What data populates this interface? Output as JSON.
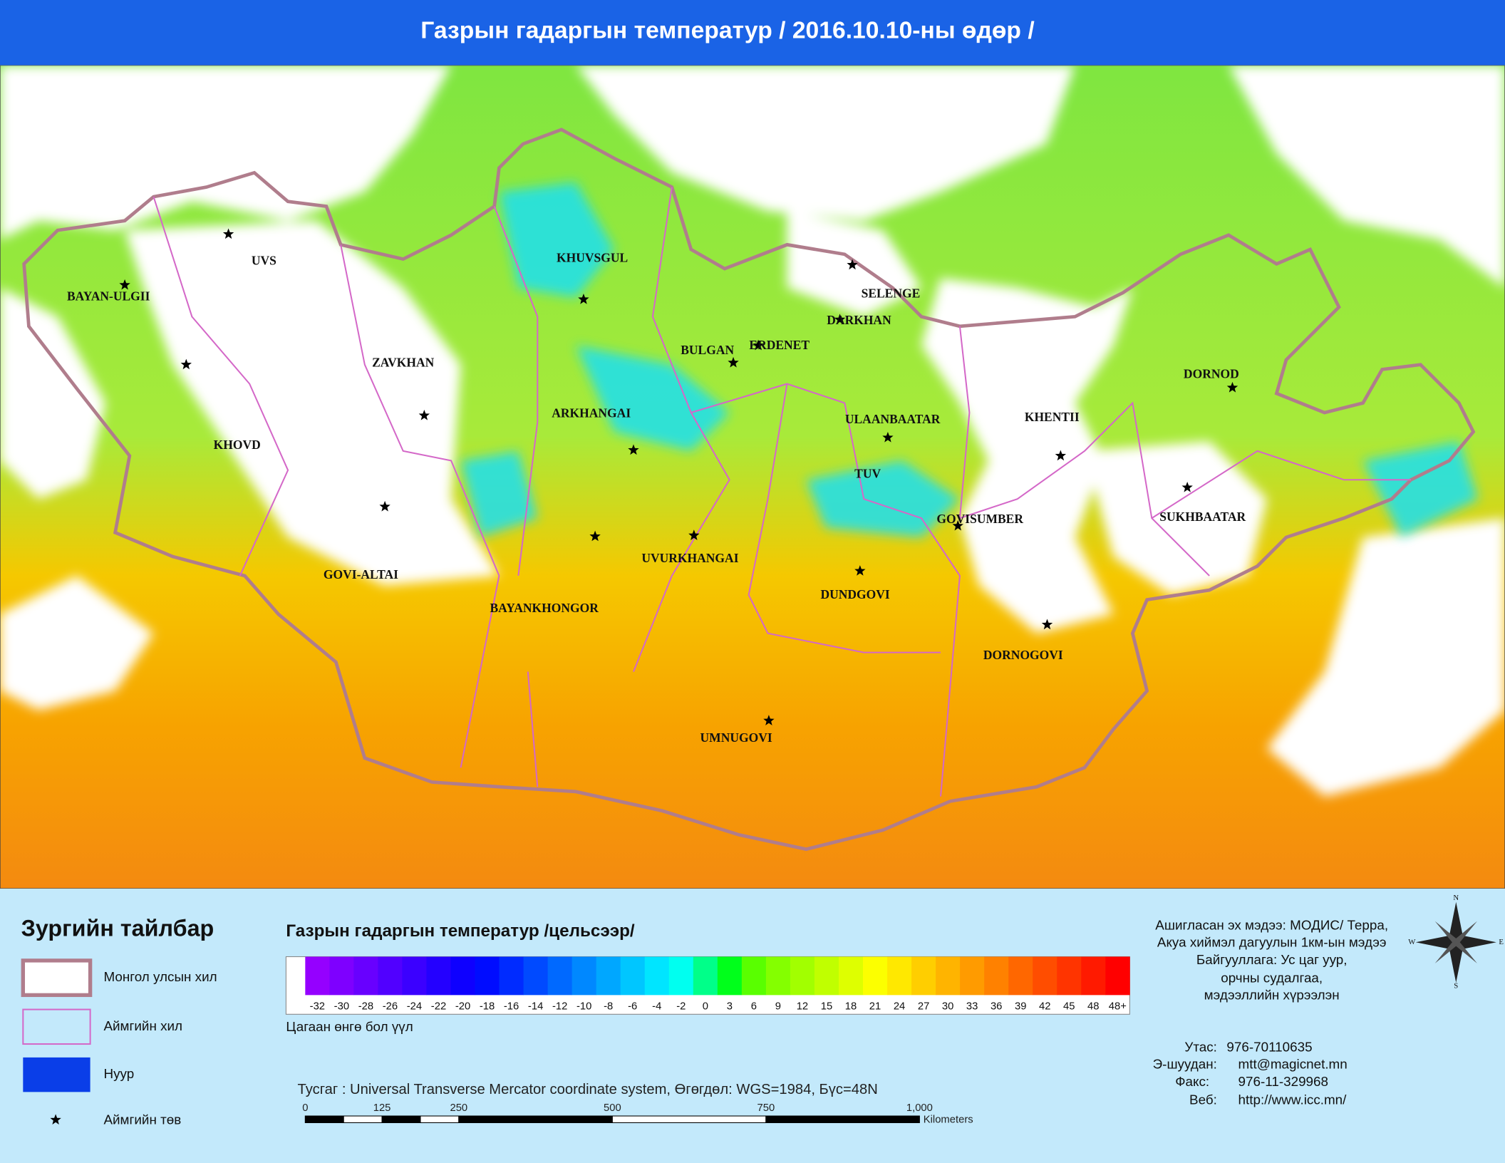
{
  "header": {
    "title": "Газрын гадаргын температур / 2016.10.10-ны өдөр /"
  },
  "map": {
    "labels": [
      "UVS",
      "BAYAN-ULGII",
      "KHUVSGUL",
      "SELENGE",
      "DARKHAN",
      "BULGAN",
      "ERDENET",
      "ZAVKHAN",
      "DORNOD",
      "ARKHANGAI",
      "ULAANBAATAR",
      "KHENTII",
      "KHOVD",
      "TUV",
      "GOVISUMBER",
      "SUKHBAATAR",
      "UVURKHANGAI",
      "GOVI-ALTAI",
      "DUNDGOVI",
      "BAYANKHONGOR",
      "DORNOGOVI",
      "UMNUGOVI"
    ]
  },
  "legend": {
    "title": "Зургийн тайлбар",
    "items": [
      "Монгол улсын хил",
      "Аймгийн хил",
      "Нуур",
      "Аймгийн төв"
    ]
  },
  "color_scale": {
    "title": "Газрын гадаргын температур /цельсээр/",
    "labels": [
      "-32",
      "-30",
      "-28",
      "-26",
      "-24",
      "-22",
      "-20",
      "-18",
      "-16",
      "-14",
      "-12",
      "-10",
      "-8",
      "-6",
      "-4",
      "-2",
      "0",
      "3",
      "6",
      "9",
      "12",
      "15",
      "18",
      "21",
      "24",
      "27",
      "30",
      "33",
      "36",
      "39",
      "42",
      "45",
      "48",
      "48+"
    ],
    "note": "Цагаан өнгө бол үүл"
  },
  "scale_bar": {
    "caption": "Тусгаг : Universal Transverse Mercator coordinate system, Өгөгдөл: WGS=1984, Бүс=48N",
    "ticks": [
      "0",
      "125",
      "250",
      "500",
      "750",
      "1,000"
    ],
    "unit": "Kilometers"
  },
  "source": [
    "Ашигласан эх мэдээ: МОДИС/ Терра,",
    "Акуа хиймэл дагуулын 1км-ын мэдээ",
    "Байгууллага: Ус цаг уур,",
    "орчны судалгаа,",
    "мэдээллийн хүрээлэн"
  ],
  "contacts": [
    {
      "label": "Утас:",
      "value": "976-70110635"
    },
    {
      "label": "Э-шуудан:",
      "value": "mtt@magicnet.mn"
    },
    {
      "label": "Факс:",
      "value": "976-11-329968"
    },
    {
      "label": "Веб:",
      "value": "http://www.icc.mn/"
    }
  ],
  "compass": [
    "N",
    "E",
    "S",
    "W"
  ]
}
